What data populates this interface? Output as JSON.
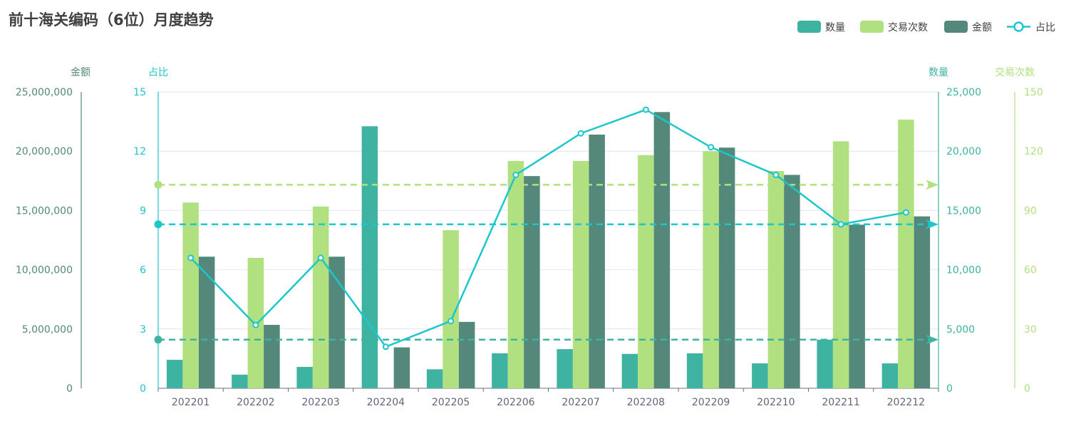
{
  "title": "前十海关编码（6位）月度趋势",
  "colors": {
    "quantity": "#3fb3a2",
    "transactions": "#b0e07f",
    "amount": "#53887a",
    "ratio": "#1dc6cc",
    "grid": "#e3e6ee",
    "xaxis_text": "#5f6676"
  },
  "legend": [
    {
      "name": "数量",
      "color": "#3fb3a2",
      "kind": "bar"
    },
    {
      "name": "交易次数",
      "color": "#b0e07f",
      "kind": "bar"
    },
    {
      "name": "金额",
      "color": "#53887a",
      "kind": "bar"
    },
    {
      "name": "占比",
      "color": "#1dc6cc",
      "kind": "line"
    }
  ],
  "axes": {
    "amount": {
      "name": "金额",
      "color": "#53887a",
      "ticks": [
        "0",
        "5,000,000",
        "10,000,000",
        "15,000,000",
        "20,000,000",
        "25,000,000"
      ],
      "max": 25000000
    },
    "ratio": {
      "name": "占比",
      "color": "#1dc6cc",
      "ticks": [
        "0",
        "3",
        "6",
        "9",
        "12",
        "15"
      ],
      "max": 15
    },
    "quantity": {
      "name": "数量",
      "color": "#3fb3a2",
      "ticks": [
        "0",
        "5,000",
        "10,000",
        "15,000",
        "20,000",
        "25,000"
      ],
      "max": 25000
    },
    "transactions": {
      "name": "交易次数",
      "color": "#b0e07f",
      "ticks": [
        "0",
        "30",
        "60",
        "90",
        "120",
        "150"
      ],
      "max": 150
    }
  },
  "chart_data": {
    "type": "bar",
    "title": "前十海关编码（6位）月度趋势",
    "categories": [
      "202201",
      "202202",
      "202203",
      "202204",
      "202205",
      "202206",
      "202207",
      "202208",
      "202209",
      "202210",
      "202211",
      "202212"
    ],
    "series": [
      {
        "name": "数量",
        "type": "bar",
        "axis": "quantity",
        "values": [
          2400,
          1150,
          1800,
          22100,
          1600,
          2950,
          3300,
          2900,
          2950,
          2100,
          4100,
          2100
        ]
      },
      {
        "name": "交易次数",
        "type": "bar",
        "axis": "transactions",
        "values": [
          94,
          66,
          92,
          0,
          80,
          115,
          115,
          118,
          120,
          110,
          125,
          136
        ]
      },
      {
        "name": "金额",
        "type": "bar",
        "axis": "amount",
        "values": [
          11100000,
          5350000,
          11100000,
          3450000,
          5600000,
          17900000,
          21400000,
          23300000,
          20300000,
          18000000,
          13800000,
          14500000
        ]
      },
      {
        "name": "占比",
        "type": "line",
        "axis": "ratio",
        "values": [
          6.6,
          3.2,
          6.6,
          2.1,
          3.4,
          10.8,
          12.9,
          14.1,
          12.2,
          10.8,
          8.3,
          8.9
        ]
      }
    ],
    "reference_lines": [
      {
        "axis": "transactions",
        "value": 103
      },
      {
        "axis": "ratio",
        "value": 8.3
      },
      {
        "axis": "quantity",
        "value": 4100
      }
    ],
    "ylim": {
      "amount": [
        0,
        25000000
      ],
      "ratio": [
        0,
        15
      ],
      "quantity": [
        0,
        25000
      ],
      "transactions": [
        0,
        150
      ]
    },
    "grid": true,
    "legend_position": "top-right"
  }
}
